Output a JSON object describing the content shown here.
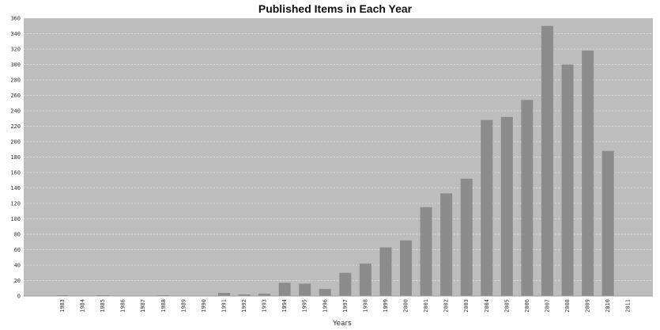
{
  "chart_data": {
    "type": "bar",
    "title": "Published Items in Each Year",
    "xlabel": "Years",
    "ylabel": "",
    "ylim": [
      0,
      360
    ],
    "yticks": [
      0,
      20,
      40,
      60,
      80,
      100,
      120,
      140,
      160,
      180,
      200,
      220,
      240,
      260,
      280,
      300,
      320,
      340,
      360
    ],
    "grid": true,
    "categories": [
      "1983",
      "1984",
      "1985",
      "1986",
      "1987",
      "1988",
      "1989",
      "1990",
      "1991",
      "1992",
      "1993",
      "1994",
      "1995",
      "1996",
      "1997",
      "1998",
      "1999",
      "2000",
      "2001",
      "2002",
      "2003",
      "2004",
      "2005",
      "2006",
      "2007",
      "2008",
      "2009",
      "2010",
      "2011"
    ],
    "values": [
      1,
      0,
      1,
      0,
      0,
      1,
      0,
      0,
      4,
      2,
      3,
      17,
      16,
      9,
      30,
      42,
      63,
      72,
      115,
      133,
      152,
      228,
      232,
      254,
      350,
      300,
      318,
      188,
      0
    ],
    "colors": {
      "plot_background": "#bdbdbd",
      "bar": "#8c8c8c",
      "grid": "#e2e2e2"
    }
  }
}
